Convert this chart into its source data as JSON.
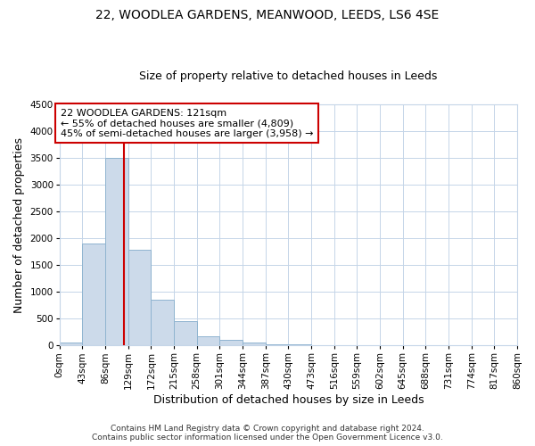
{
  "title": "22, WOODLEA GARDENS, MEANWOOD, LEEDS, LS6 4SE",
  "subtitle": "Size of property relative to detached houses in Leeds",
  "xlabel": "Distribution of detached houses by size in Leeds",
  "ylabel": "Number of detached properties",
  "bar_color": "#ccdaea",
  "bar_edge_color": "#90b4d0",
  "background_color": "#ffffff",
  "grid_color": "#c5d5e8",
  "annotation_box_color": "#cc0000",
  "annotation_line1": "22 WOODLEA GARDENS: 121sqm",
  "annotation_line2": "← 55% of detached houses are smaller (4,809)",
  "annotation_line3": "45% of semi-detached houses are larger (3,958) →",
  "property_size": 121,
  "bin_width": 43,
  "bins": [
    0,
    43,
    86,
    129,
    172,
    215,
    258,
    301,
    344,
    387,
    430,
    473,
    516,
    559,
    602,
    645,
    688,
    731,
    774,
    817,
    860
  ],
  "bin_labels": [
    "0sqm",
    "43sqm",
    "86sqm",
    "129sqm",
    "172sqm",
    "215sqm",
    "258sqm",
    "301sqm",
    "344sqm",
    "387sqm",
    "430sqm",
    "473sqm",
    "516sqm",
    "559sqm",
    "602sqm",
    "645sqm",
    "688sqm",
    "731sqm",
    "774sqm",
    "817sqm",
    "860sqm"
  ],
  "counts": [
    50,
    1900,
    3500,
    1780,
    850,
    450,
    170,
    100,
    60,
    30,
    15,
    5,
    0,
    0,
    0,
    0,
    0,
    0,
    0,
    0
  ],
  "ylim": [
    0,
    4500
  ],
  "yticks": [
    0,
    500,
    1000,
    1500,
    2000,
    2500,
    3000,
    3500,
    4000,
    4500
  ],
  "footer_line1": "Contains HM Land Registry data © Crown copyright and database right 2024.",
  "footer_line2": "Contains public sector information licensed under the Open Government Licence v3.0.",
  "title_fontsize": 10,
  "subtitle_fontsize": 9,
  "axis_label_fontsize": 9,
  "tick_fontsize": 7.5,
  "annotation_fontsize": 8,
  "footer_fontsize": 6.5
}
